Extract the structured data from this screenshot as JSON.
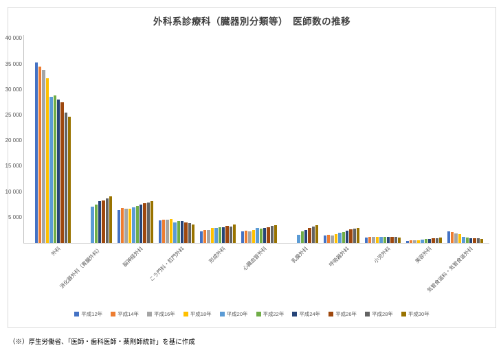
{
  "figure": {
    "source_note": "（※）厚生労働省、「医師・歯科医師・薬剤師統計」を基に作成"
  },
  "chart_data": {
    "type": "bar",
    "title": "外科系診療科（臓器別分類等）　医師数の推移",
    "xlabel": "",
    "ylabel": "",
    "ylim": [
      0,
      40000
    ],
    "grid": false,
    "legend_position": "bottom",
    "yticks": [
      {
        "label": "40 000",
        "value": 40000
      },
      {
        "label": "35 000",
        "value": 35000
      },
      {
        "label": "30 000",
        "value": 30000
      },
      {
        "label": "25 000",
        "value": 25000
      },
      {
        "label": "20 000",
        "value": 20000
      },
      {
        "label": "15 000",
        "value": 15000
      },
      {
        "label": "10 000",
        "value": 10000
      },
      {
        "label": "5 000",
        "value": 5000
      }
    ],
    "categories": [
      "外科",
      "消化器外科（胃腸外科）",
      "脳神経外科",
      "こう門科・肛門外科",
      "形成外科",
      "心臓血管外科",
      "乳腺外科",
      "呼吸器外科",
      "小児外科",
      "美容外科",
      "気管食道科・気管食道外科"
    ],
    "series": [
      {
        "name": "平成12年",
        "color": "#4472C4",
        "values": [
          35300,
          null,
          6500,
          4500,
          2350,
          2250,
          null,
          1450,
          1100,
          450,
          2300
        ]
      },
      {
        "name": "平成14年",
        "color": "#ED7D31",
        "values": [
          34600,
          null,
          6850,
          4550,
          2600,
          2450,
          null,
          1600,
          1200,
          500,
          2150
        ]
      },
      {
        "name": "平成16年",
        "color": "#A5A5A5",
        "values": [
          33900,
          null,
          6750,
          4550,
          2550,
          2350,
          null,
          1550,
          1150,
          550,
          1900
        ]
      },
      {
        "name": "平成18年",
        "color": "#FFC000",
        "values": [
          32300,
          null,
          6750,
          4650,
          2900,
          2600,
          null,
          1800,
          1250,
          600,
          1800
        ]
      },
      {
        "name": "平成20年",
        "color": "#5B9BD5",
        "values": [
          28700,
          7150,
          7000,
          4100,
          2900,
          3000,
          1650,
          2000,
          1150,
          700,
          1150
        ]
      },
      {
        "name": "平成22年",
        "color": "#70AD47",
        "values": [
          28900,
          7500,
          7200,
          4250,
          3100,
          2800,
          2250,
          2200,
          1200,
          750,
          1050
        ]
      },
      {
        "name": "平成24年",
        "color": "#264478",
        "values": [
          28100,
          8250,
          7500,
          4300,
          3150,
          3000,
          2500,
          2450,
          1250,
          800,
          1000
        ]
      },
      {
        "name": "平成26年",
        "color": "#9E480E",
        "values": [
          27500,
          8400,
          7750,
          4100,
          3350,
          3150,
          2900,
          2650,
          1200,
          900,
          950
        ]
      },
      {
        "name": "平成28年",
        "color": "#636363",
        "values": [
          25600,
          8800,
          8000,
          3900,
          3250,
          3350,
          3200,
          2850,
          1150,
          950,
          900
        ]
      },
      {
        "name": "平成30年",
        "color": "#997300",
        "values": [
          24800,
          9100,
          8200,
          3700,
          3600,
          3500,
          3500,
          3000,
          1100,
          1050,
          850
        ]
      }
    ]
  }
}
